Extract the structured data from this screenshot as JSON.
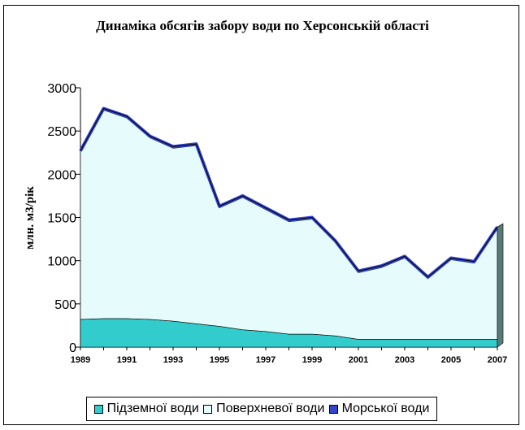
{
  "colors": {
    "underground": "#33cccc",
    "surface": "#e6fbfc",
    "sea": "#3344cc"
  },
  "chart_data": {
    "type": "area",
    "title": "Динаміка обсягів забору води по Херсонській області",
    "ylabel": "млн. м3/рік",
    "xlabel": "",
    "ylim": [
      0,
      3000
    ],
    "yticks": [
      "0",
      "500",
      "1000",
      "1500",
      "2000",
      "2500",
      "3000"
    ],
    "x": [
      1989,
      1990,
      1991,
      1992,
      1993,
      1994,
      1995,
      1996,
      1997,
      1998,
      1999,
      2000,
      2001,
      2002,
      2003,
      2004,
      2005,
      2006,
      2007
    ],
    "xtick_labels": [
      "1989",
      "1991",
      "1993",
      "1995",
      "1997",
      "1999",
      "2001",
      "2003",
      "2005",
      "2007"
    ],
    "stacked": true,
    "legend_position": "bottom",
    "series": [
      {
        "name": "Підземної води",
        "values": [
          320,
          330,
          330,
          320,
          300,
          270,
          240,
          200,
          180,
          150,
          150,
          130,
          90,
          90,
          90,
          90,
          90,
          90,
          90
        ]
      },
      {
        "name": "Поверхневої води",
        "values": [
          1950,
          2410,
          2320,
          2100,
          2000,
          2060,
          1370,
          1530,
          1410,
          1300,
          1330,
          1080,
          770,
          830,
          940,
          700,
          920,
          880,
          1280
        ]
      },
      {
        "name": "Морської води",
        "values": [
          0,
          20,
          20,
          20,
          20,
          20,
          20,
          20,
          20,
          20,
          20,
          20,
          20,
          20,
          20,
          20,
          20,
          20,
          20
        ]
      }
    ]
  }
}
